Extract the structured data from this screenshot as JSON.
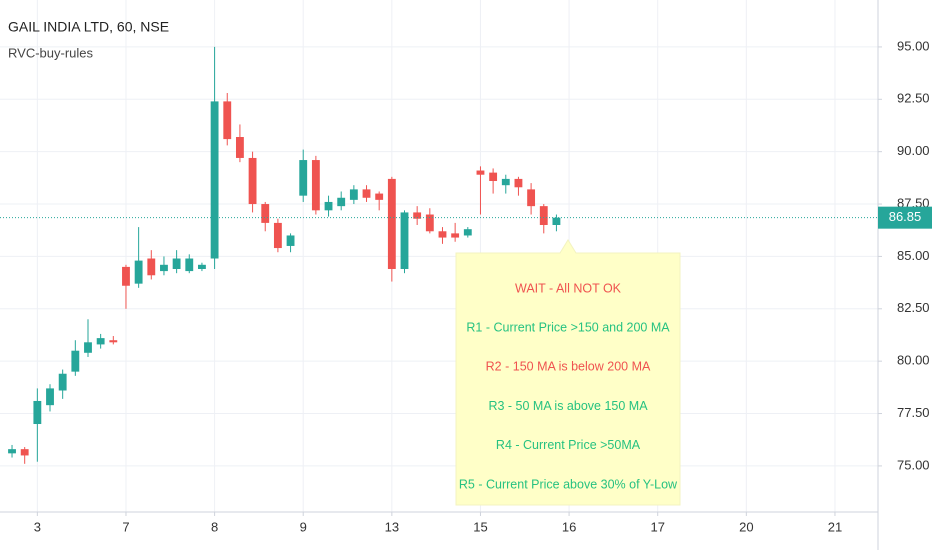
{
  "chart_data": {
    "type": "candlestick",
    "title": "GAIL INDIA LTD, 60, NSE",
    "subtitle": "RVC-buy-rules",
    "x": [
      0,
      1,
      2,
      3,
      4,
      5,
      6,
      7,
      8,
      9,
      10,
      11,
      12,
      13,
      14,
      15,
      16,
      17,
      18,
      19,
      20,
      21,
      22,
      23,
      24,
      25,
      26,
      27,
      28,
      29,
      30,
      31,
      32,
      33,
      34,
      35,
      36,
      37,
      38,
      39,
      40,
      41,
      42,
      43
    ],
    "open": [
      75.6,
      75.8,
      77.0,
      77.9,
      78.6,
      79.5,
      80.4,
      80.8,
      81.0,
      84.5,
      83.7,
      84.9,
      84.3,
      84.4,
      84.3,
      84.4,
      84.9,
      92.4,
      90.7,
      89.7,
      87.5,
      86.6,
      85.5,
      87.9,
      89.6,
      87.2,
      87.4,
      87.7,
      88.2,
      88.0,
      88.7,
      84.4,
      87.1,
      87.0,
      86.2,
      86.1,
      86.0,
      89.1,
      89.0,
      88.4,
      88.7,
      88.2,
      87.4,
      86.5
    ],
    "high": [
      76.0,
      75.9,
      78.7,
      78.9,
      79.6,
      81.0,
      82.0,
      81.3,
      81.2,
      84.6,
      86.4,
      85.3,
      85.0,
      85.3,
      85.1,
      84.7,
      95.0,
      92.8,
      91.3,
      90.0,
      87.6,
      86.8,
      86.1,
      90.1,
      89.8,
      87.9,
      88.1,
      88.4,
      88.4,
      88.1,
      88.8,
      87.2,
      87.4,
      87.3,
      86.4,
      86.6,
      86.4,
      89.3,
      89.2,
      88.9,
      88.8,
      88.5,
      87.5,
      87.0
    ],
    "low": [
      75.4,
      75.1,
      75.2,
      77.6,
      78.2,
      79.3,
      80.2,
      80.6,
      80.8,
      82.5,
      83.5,
      83.9,
      84.1,
      84.2,
      84.2,
      84.3,
      84.4,
      90.3,
      89.5,
      87.1,
      86.2,
      85.2,
      85.2,
      87.6,
      87.0,
      86.9,
      87.2,
      87.5,
      87.6,
      87.2,
      83.8,
      84.2,
      86.5,
      86.1,
      85.6,
      85.7,
      85.9,
      87.0,
      88.0,
      88.0,
      87.9,
      87.0,
      86.1,
      86.2
    ],
    "close": [
      75.8,
      75.5,
      78.1,
      78.7,
      79.4,
      80.5,
      80.9,
      81.1,
      80.9,
      83.6,
      84.8,
      84.1,
      84.6,
      84.9,
      84.9,
      84.6,
      92.4,
      90.6,
      89.7,
      87.5,
      86.6,
      85.4,
      86.0,
      89.6,
      87.2,
      87.6,
      87.8,
      88.2,
      87.8,
      87.7,
      84.4,
      87.1,
      86.8,
      86.2,
      85.9,
      85.9,
      86.3,
      88.9,
      88.6,
      88.7,
      88.3,
      87.4,
      86.5,
      86.85
    ],
    "up_color": "#26a69a",
    "down_color": "#ef5350",
    "xlim": [
      -0.95,
      68.4
    ],
    "xticks": [
      {
        "value": 2,
        "label": "3"
      },
      {
        "value": 9,
        "label": "7"
      },
      {
        "value": 16,
        "label": "8"
      },
      {
        "value": 23,
        "label": "9"
      },
      {
        "value": 30,
        "label": "13"
      },
      {
        "value": 37,
        "label": "15"
      },
      {
        "value": 44,
        "label": "16"
      },
      {
        "value": 51,
        "label": "17"
      },
      {
        "value": 58,
        "label": "20"
      },
      {
        "value": 65,
        "label": "21"
      }
    ],
    "ylim": [
      72.8,
      97.24
    ],
    "yticks": [
      {
        "value": 75,
        "label": "75.00"
      },
      {
        "value": 77.5,
        "label": "77.50"
      },
      {
        "value": 80,
        "label": "80.00"
      },
      {
        "value": 82.5,
        "label": "82.50"
      },
      {
        "value": 85,
        "label": "85.00"
      },
      {
        "value": 87.5,
        "label": "87.50"
      },
      {
        "value": 90,
        "label": "90.00"
      },
      {
        "value": 92.5,
        "label": "92.50"
      },
      {
        "value": 95,
        "label": "95.00"
      }
    ],
    "grid": true,
    "last_price": 86.85,
    "annotations": [
      {
        "text": "WAIT - All NOT OK",
        "color": "#ef5350"
      },
      {
        "text": "R1 - Current Price >150 and 200 MA",
        "color": "#26c281"
      },
      {
        "text": "R2 - 150 MA is below 200 MA",
        "color": "#ef5350"
      },
      {
        "text": "R3 - 50 MA is above 150 MA",
        "color": "#26c281"
      },
      {
        "text": "R4 - Current Price >50MA",
        "color": "#26c281"
      },
      {
        "text": "R5 - Current Price above 30% of Y-Low",
        "color": "#26c281"
      }
    ]
  }
}
